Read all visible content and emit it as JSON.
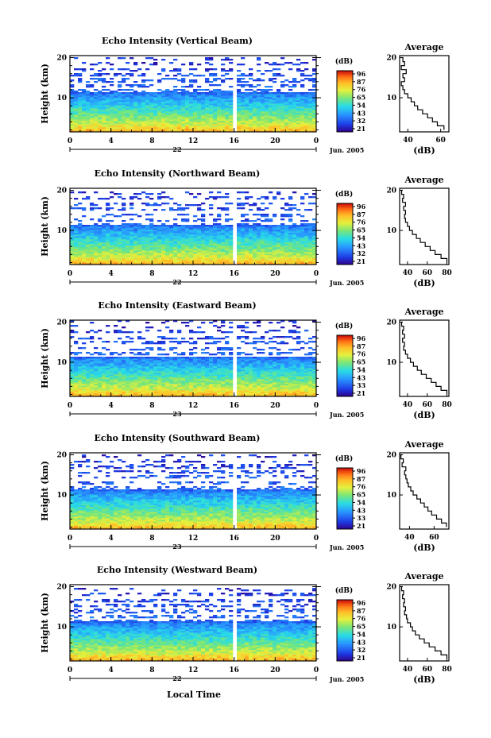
{
  "figure": {
    "x_axis_label": "Local Time",
    "date_label": "Jun. 2005",
    "avg_title": "Average",
    "avg_xlabel": "(dB)",
    "colorbar_unit": "(dB)",
    "y_axis_label": "Height (km)"
  },
  "chart_data": [
    {
      "type": "heatmap",
      "title": "Echo Intensity (Vertical Beam)",
      "ylabel": "Height (km)",
      "x_ticks": [
        "0",
        "4",
        "8",
        "12",
        "16",
        "20",
        "0"
      ],
      "day_label": "22",
      "xlim": [
        0,
        24
      ],
      "y_ticks": [
        "20",
        "10"
      ],
      "ylim": [
        1.5,
        20.5
      ],
      "colorbar": {
        "label": "(dB)",
        "ticks": [
          "96",
          "87",
          "76",
          "65",
          "54",
          "43",
          "32",
          "21"
        ]
      },
      "gap_hours": [
        15.7,
        16.1
      ],
      "average_profile": {
        "title": "Average",
        "xlabel": "(dB)",
        "x_ticks": [
          "40",
          "60"
        ],
        "xlim": [
          35,
          65
        ],
        "y_ticks": [
          "20",
          "10"
        ],
        "points": [
          [
            62,
            2
          ],
          [
            58,
            3
          ],
          [
            55,
            4
          ],
          [
            52,
            5
          ],
          [
            49,
            6
          ],
          [
            46,
            7
          ],
          [
            44,
            8
          ],
          [
            42,
            9
          ],
          [
            40,
            10
          ],
          [
            38,
            11
          ],
          [
            37,
            12
          ],
          [
            36,
            13
          ],
          [
            38,
            14
          ],
          [
            37,
            15
          ],
          [
            39,
            16
          ],
          [
            36,
            17
          ],
          [
            38,
            18
          ],
          [
            37,
            19
          ],
          [
            36,
            20
          ]
        ]
      }
    },
    {
      "type": "heatmap",
      "title": "Echo Intensity (Northward Beam)",
      "ylabel": "Height (km)",
      "x_ticks": [
        "0",
        "4",
        "8",
        "12",
        "16",
        "20",
        "0"
      ],
      "day_label": "22",
      "xlim": [
        0,
        24
      ],
      "y_ticks": [
        "20",
        "10"
      ],
      "ylim": [
        1.5,
        20.5
      ],
      "colorbar": {
        "label": "(dB)",
        "ticks": [
          "96",
          "87",
          "76",
          "65",
          "54",
          "43",
          "32",
          "21"
        ]
      },
      "gap_hours": [
        15.7,
        16.1
      ],
      "average_profile": {
        "title": "Average",
        "xlabel": "(dB)",
        "x_ticks": [
          "40",
          "60",
          "80"
        ],
        "xlim": [
          32,
          82
        ],
        "y_ticks": [
          "20",
          "10"
        ],
        "points": [
          [
            80,
            2
          ],
          [
            74,
            3
          ],
          [
            68,
            4
          ],
          [
            63,
            5
          ],
          [
            58,
            6
          ],
          [
            53,
            7
          ],
          [
            49,
            8
          ],
          [
            45,
            9
          ],
          [
            42,
            10
          ],
          [
            40,
            11
          ],
          [
            38,
            12
          ],
          [
            37,
            13
          ],
          [
            38,
            14
          ],
          [
            36,
            15
          ],
          [
            38,
            16
          ],
          [
            35,
            17
          ],
          [
            36,
            18
          ],
          [
            34,
            19
          ],
          [
            35,
            20
          ]
        ]
      }
    },
    {
      "type": "heatmap",
      "title": "Echo Intensity (Eastward Beam)",
      "ylabel": "Height (km)",
      "x_ticks": [
        "0",
        "4",
        "8",
        "12",
        "16",
        "20",
        "0"
      ],
      "day_label": "23",
      "xlim": [
        0,
        24
      ],
      "y_ticks": [
        "20",
        "10"
      ],
      "ylim": [
        1.5,
        20.5
      ],
      "colorbar": {
        "label": "(dB)",
        "ticks": [
          "96",
          "87",
          "76",
          "65",
          "54",
          "43",
          "33",
          "21"
        ]
      },
      "gap_hours": [
        15.7,
        16.1
      ],
      "average_profile": {
        "title": "Average",
        "xlabel": "(dB)",
        "x_ticks": [
          "40",
          "60",
          "80"
        ],
        "xlim": [
          32,
          82
        ],
        "y_ticks": [
          "20",
          "10"
        ],
        "points": [
          [
            80,
            2
          ],
          [
            74,
            3
          ],
          [
            69,
            4
          ],
          [
            64,
            5
          ],
          [
            59,
            6
          ],
          [
            54,
            7
          ],
          [
            50,
            8
          ],
          [
            46,
            9
          ],
          [
            43,
            10
          ],
          [
            40,
            11
          ],
          [
            38,
            12
          ],
          [
            36,
            13
          ],
          [
            37,
            14
          ],
          [
            35,
            15
          ],
          [
            37,
            16
          ],
          [
            35,
            17
          ],
          [
            36,
            18
          ],
          [
            34,
            19
          ],
          [
            35,
            20
          ]
        ]
      }
    },
    {
      "type": "heatmap",
      "title": "Echo Intensity (Southward Beam)",
      "ylabel": "Height (km)",
      "x_ticks": [
        "0",
        "4",
        "8",
        "12",
        "16",
        "20",
        "0"
      ],
      "day_label": "23",
      "xlim": [
        0,
        24
      ],
      "y_ticks": [
        "20",
        "10"
      ],
      "ylim": [
        1.5,
        20.5
      ],
      "colorbar": {
        "label": "(dB)",
        "ticks": [
          "96",
          "87",
          "76",
          "65",
          "54",
          "43",
          "33",
          "21"
        ]
      },
      "gap_hours": [
        15.7,
        16.1
      ],
      "average_profile": {
        "title": "Average",
        "xlabel": "(dB)",
        "x_ticks": [
          "40",
          "60"
        ],
        "xlim": [
          32,
          72
        ],
        "y_ticks": [
          "20",
          "10"
        ],
        "points": [
          [
            70,
            2
          ],
          [
            66,
            3
          ],
          [
            62,
            4
          ],
          [
            58,
            5
          ],
          [
            55,
            6
          ],
          [
            52,
            7
          ],
          [
            49,
            8
          ],
          [
            46,
            9
          ],
          [
            43,
            10
          ],
          [
            41,
            11
          ],
          [
            39,
            12
          ],
          [
            38,
            13
          ],
          [
            37,
            14
          ],
          [
            36,
            15
          ],
          [
            37,
            16
          ],
          [
            34,
            17
          ],
          [
            35,
            18
          ],
          [
            33,
            19
          ],
          [
            34,
            20
          ]
        ]
      }
    },
    {
      "type": "heatmap",
      "title": "Echo Intensity (Westward Beam)",
      "ylabel": "Height (km)",
      "x_ticks": [
        "0",
        "4",
        "8",
        "12",
        "16",
        "20",
        "0"
      ],
      "day_label": "22",
      "xlim": [
        0,
        24
      ],
      "y_ticks": [
        "20",
        "10"
      ],
      "ylim": [
        1.5,
        20.5
      ],
      "colorbar": {
        "label": "(dB)",
        "ticks": [
          "96",
          "87",
          "76",
          "65",
          "54",
          "43",
          "32",
          "21"
        ]
      },
      "gap_hours": [
        15.7,
        16.1
      ],
      "average_profile": {
        "title": "Average",
        "xlabel": "(dB)",
        "x_ticks": [
          "40",
          "60",
          "80"
        ],
        "xlim": [
          32,
          82
        ],
        "y_ticks": [
          "20",
          "10"
        ],
        "points": [
          [
            80,
            2
          ],
          [
            74,
            3
          ],
          [
            68,
            4
          ],
          [
            62,
            5
          ],
          [
            57,
            6
          ],
          [
            52,
            7
          ],
          [
            48,
            8
          ],
          [
            45,
            9
          ],
          [
            43,
            10
          ],
          [
            40,
            11
          ],
          [
            39,
            12
          ],
          [
            37,
            13
          ],
          [
            38,
            14
          ],
          [
            36,
            15
          ],
          [
            37,
            16
          ],
          [
            35,
            17
          ],
          [
            36,
            18
          ],
          [
            34,
            19
          ],
          [
            35,
            20
          ]
        ]
      }
    }
  ]
}
